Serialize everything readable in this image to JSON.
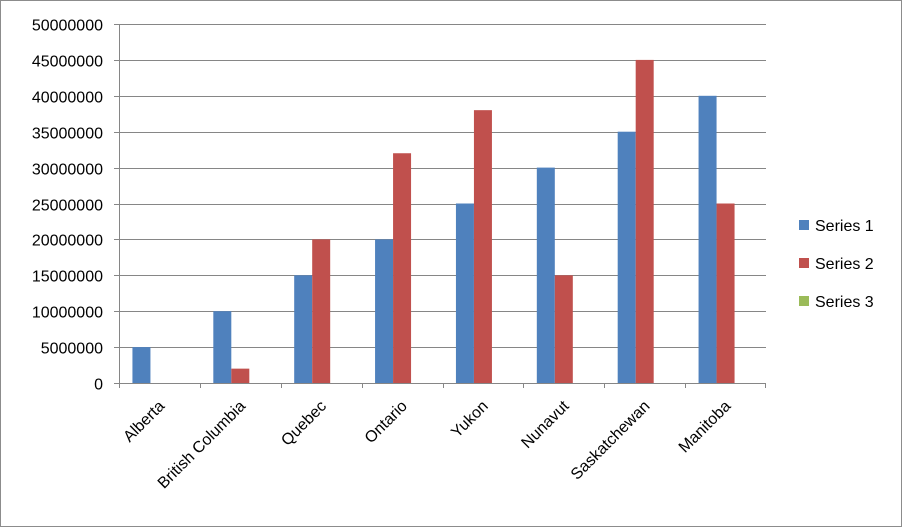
{
  "chart_data": {
    "type": "bar",
    "title": "",
    "xlabel": "",
    "ylabel": "",
    "categories": [
      "Alberta",
      "British Columbia",
      "Quebec",
      "Ontario",
      "Yukon",
      "Nunavut",
      "Saskatchewan",
      "Manitoba"
    ],
    "series": [
      {
        "name": "Series 1",
        "color": "#4f81bd",
        "values": [
          5000000,
          10000000,
          15000000,
          20000000,
          25000000,
          30000000,
          35000000,
          40000000
        ]
      },
      {
        "name": "Series 2",
        "color": "#c0504d",
        "values": [
          0,
          2000000,
          20000000,
          32000000,
          38000000,
          15000000,
          45000000,
          25000000
        ]
      },
      {
        "name": "Series 3",
        "color": "#9bbb59",
        "values": [
          0,
          0,
          0,
          0,
          0,
          0,
          0,
          0
        ]
      }
    ],
    "ylim": [
      0,
      50000000
    ],
    "yticks": [
      0,
      5000000,
      10000000,
      15000000,
      20000000,
      25000000,
      30000000,
      35000000,
      40000000,
      45000000,
      50000000
    ],
    "grid": true,
    "legend_position": "right",
    "axis_color": "#868686",
    "grid_color": "#868686"
  }
}
